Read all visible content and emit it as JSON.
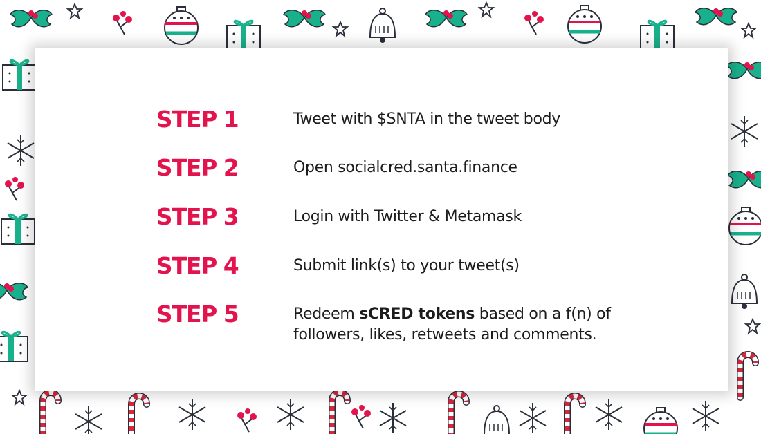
{
  "background": {
    "pattern": "christmas-ornaments-holly-snowflakes-candy-canes",
    "colors": {
      "red": "#e3144d",
      "teal": "#19b18c",
      "dark": "#2b2f3a",
      "candy_red": "#d7263d"
    }
  },
  "colors": {
    "step_label": "#e3144d",
    "body_text": "#1c1c1c",
    "card": "#ffffff"
  },
  "steps": [
    {
      "label": "STEP 1",
      "text": "Tweet with $SNTA in the tweet body"
    },
    {
      "label": "STEP 2",
      "text": "Open socialcred.santa.finance"
    },
    {
      "label": "STEP 3",
      "text": "Login with Twitter & Metamask"
    },
    {
      "label": "STEP 4",
      "text": "Submit link(s) to your tweet(s)"
    },
    {
      "label": "STEP 5",
      "text_prefix": "Redeem ",
      "text_bold": "sCRED tokens",
      "text_suffix": " based on a f(n) of followers, likes, retweets and comments."
    }
  ]
}
